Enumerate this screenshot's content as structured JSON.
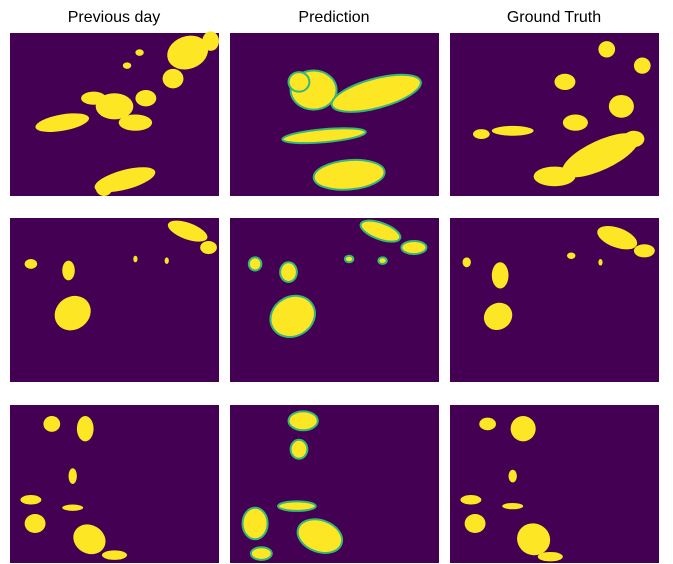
{
  "columns": [
    "Previous day",
    "Prediction",
    "Ground Truth"
  ]
}
